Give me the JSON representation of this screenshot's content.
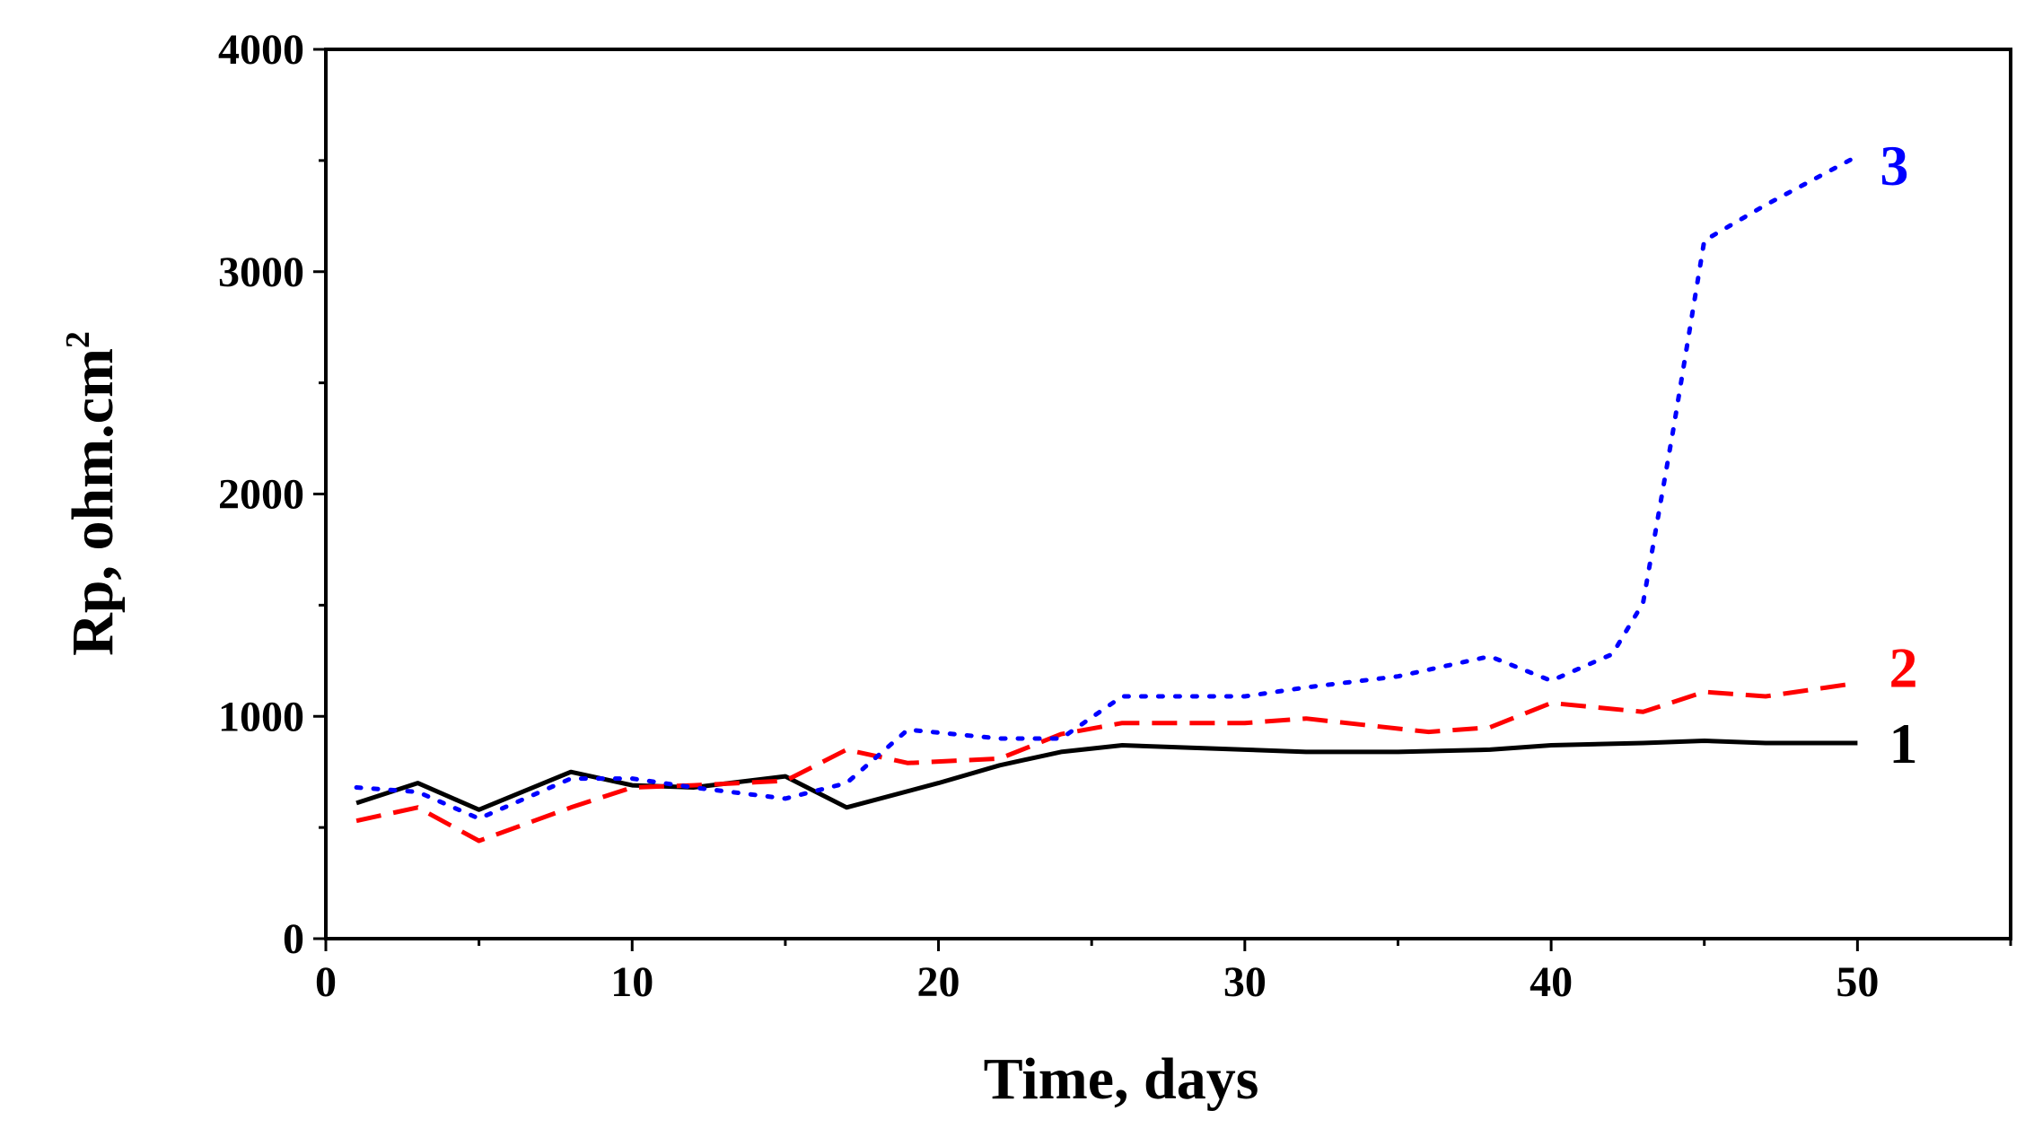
{
  "chart_data": {
    "type": "line",
    "title": "",
    "xlabel": "Time, days",
    "ylabel_main": "Rp, ohm.cm",
    "ylabel_sup": "2",
    "xlim": [
      0,
      55
    ],
    "ylim": [
      0,
      4000
    ],
    "xticks": [
      0,
      10,
      20,
      30,
      40,
      50
    ],
    "yticks": [
      0,
      1000,
      2000,
      3000,
      4000
    ],
    "xtick_labels": [
      "0",
      "10",
      "20",
      "30",
      "40",
      "50"
    ],
    "ytick_labels": [
      "0",
      "1000",
      "2000",
      "3000",
      "4000"
    ],
    "grid": false,
    "series": [
      {
        "name": "1",
        "label": "1",
        "color": "#000000",
        "style": "solid",
        "label_pos": [
          51.5,
          880
        ],
        "x": [
          1,
          3,
          5,
          8,
          10,
          12,
          15,
          17,
          20,
          22,
          24,
          26,
          30,
          32,
          35,
          38,
          40,
          43,
          45,
          47,
          50
        ],
        "y": [
          610,
          700,
          580,
          750,
          690,
          680,
          730,
          590,
          700,
          780,
          840,
          870,
          850,
          840,
          840,
          850,
          870,
          880,
          890,
          880,
          880
        ]
      },
      {
        "name": "2",
        "label": "2",
        "color": "#ff0000",
        "style": "dashed",
        "label_pos": [
          51.5,
          1220
        ],
        "x": [
          1,
          3,
          5,
          8,
          10,
          12,
          15,
          17,
          19,
          22,
          24,
          26,
          30,
          32,
          34,
          36,
          38,
          40,
          43,
          45,
          47,
          50
        ],
        "y": [
          530,
          590,
          440,
          590,
          680,
          690,
          710,
          850,
          790,
          810,
          920,
          970,
          970,
          990,
          960,
          930,
          950,
          1060,
          1020,
          1110,
          1090,
          1150
        ]
      },
      {
        "name": "3",
        "label": "3",
        "color": "#0000ff",
        "style": "dotted",
        "label_pos": [
          51.2,
          3480
        ],
        "x": [
          1,
          3,
          5,
          8,
          10,
          12,
          15,
          17,
          19,
          22,
          24,
          26,
          28,
          30,
          32,
          35,
          38,
          40,
          42,
          43,
          44,
          45,
          47,
          50
        ],
        "y": [
          680,
          660,
          540,
          720,
          720,
          680,
          630,
          700,
          940,
          900,
          900,
          1090,
          1090,
          1090,
          1130,
          1180,
          1270,
          1160,
          1280,
          1510,
          2300,
          3140,
          3300,
          3520
        ]
      }
    ]
  }
}
